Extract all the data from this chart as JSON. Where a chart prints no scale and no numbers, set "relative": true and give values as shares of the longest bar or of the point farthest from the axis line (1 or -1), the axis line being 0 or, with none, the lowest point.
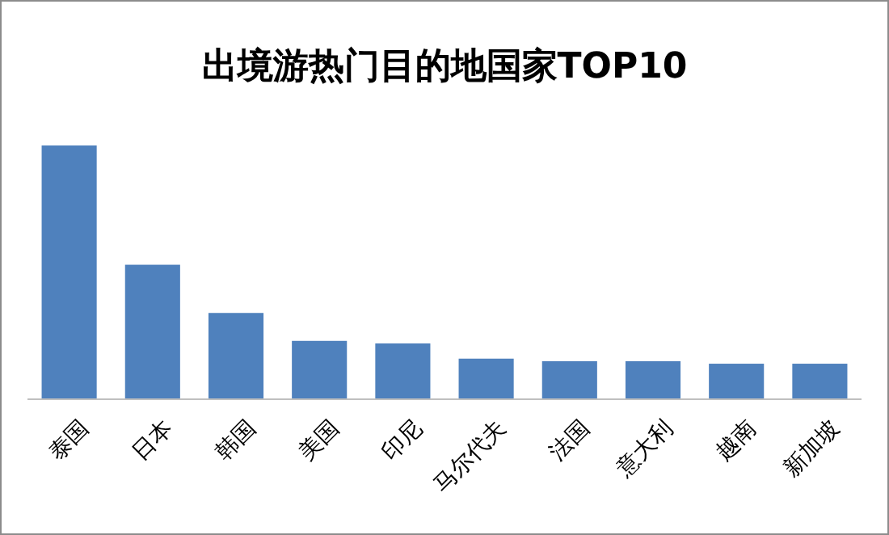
{
  "chart_data": {
    "type": "bar",
    "title": "出境游热门目的地国家TOP10",
    "relative": true,
    "categories": [
      "泰国",
      "日本",
      "韩国",
      "美国",
      "印尼",
      "马尔代夫",
      "法国",
      "意大利",
      "越南",
      "新加坡"
    ],
    "values": [
      1,
      0.53,
      0.34,
      0.23,
      0.22,
      0.16,
      0.15,
      0.15,
      0.14,
      0.14
    ],
    "color": "#4f81bd"
  }
}
